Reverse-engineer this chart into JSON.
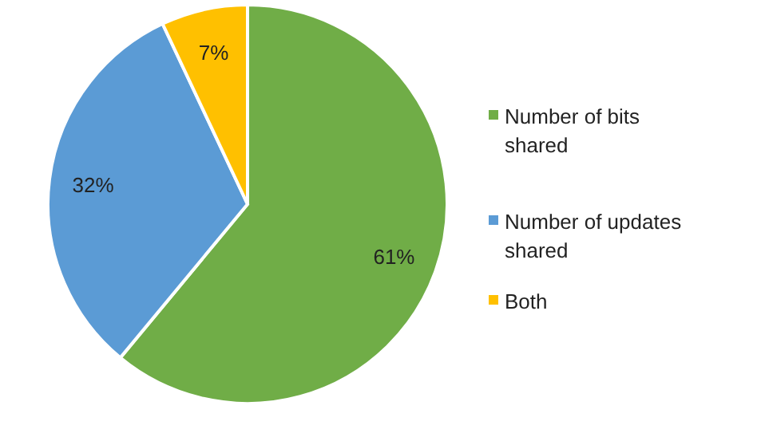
{
  "chart_data": {
    "type": "pie",
    "categories": [
      "Number of bits shared",
      "Number of updates shared",
      "Both"
    ],
    "values": [
      61,
      32,
      7
    ],
    "colors": [
      "#70ad47",
      "#5b9bd5",
      "#ffc000"
    ],
    "value_labels": [
      "61%",
      "32%",
      "7%"
    ],
    "legend": "right"
  }
}
